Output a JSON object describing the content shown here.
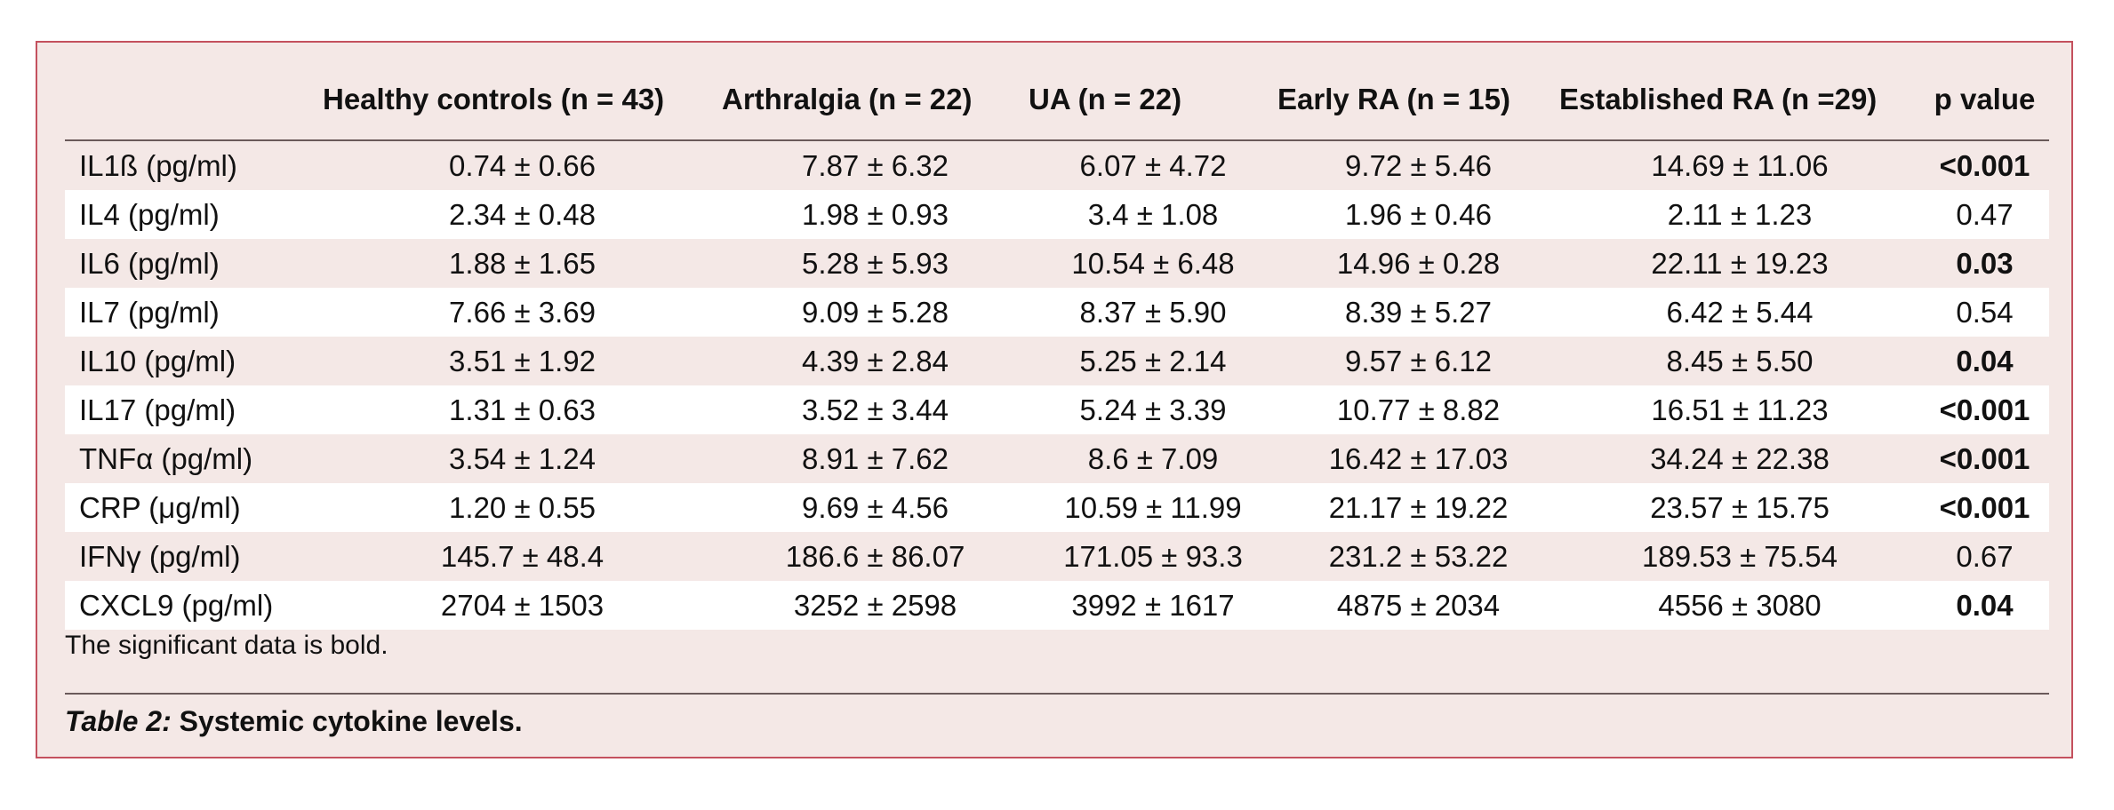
{
  "table": {
    "headers": {
      "label": "",
      "healthy": "Healthy controls (n = 43)",
      "arthralgia": "Arthralgia (n = 22)",
      "ua": "UA (n = 22)",
      "early_ra": "Early RA (n = 15)",
      "established_ra": "Established RA (n =29)",
      "p_value": "p value"
    },
    "rows": [
      {
        "label": "IL1ß (pg/ml)",
        "healthy": "0.74 ± 0.66",
        "arthralgia": "7.87 ± 6.32",
        "ua": "6.07 ± 4.72",
        "early_ra": "9.72 ± 5.46",
        "established_ra": "14.69 ± 11.06",
        "p": "<0.001",
        "significant": true
      },
      {
        "label": "IL4 (pg/ml)",
        "healthy": "2.34 ± 0.48",
        "arthralgia": "1.98 ± 0.93",
        "ua": "3.4 ± 1.08",
        "early_ra": "1.96 ± 0.46",
        "established_ra": "2.11 ± 1.23",
        "p": "0.47",
        "significant": false
      },
      {
        "label": "IL6 (pg/ml)",
        "healthy": "1.88 ± 1.65",
        "arthralgia": "5.28 ± 5.93",
        "ua": "10.54 ± 6.48",
        "early_ra": "14.96 ± 0.28",
        "established_ra": "22.11 ± 19.23",
        "p": "0.03",
        "significant": true
      },
      {
        "label": "IL7 (pg/ml)",
        "healthy": "7.66 ± 3.69",
        "arthralgia": "9.09 ± 5.28",
        "ua": "8.37 ± 5.90",
        "early_ra": "8.39 ± 5.27",
        "established_ra": "6.42 ± 5.44",
        "p": "0.54",
        "significant": false
      },
      {
        "label": "IL10 (pg/ml)",
        "healthy": "3.51 ± 1.92",
        "arthralgia": "4.39 ± 2.84",
        "ua": "5.25 ± 2.14",
        "early_ra": "9.57 ± 6.12",
        "established_ra": "8.45 ± 5.50",
        "p": "0.04",
        "significant": true
      },
      {
        "label": "IL17 (pg/ml)",
        "healthy": "1.31 ± 0.63",
        "arthralgia": "3.52 ± 3.44",
        "ua": "5.24 ± 3.39",
        "early_ra": "10.77 ± 8.82",
        "established_ra": "16.51 ± 11.23",
        "p": "<0.001",
        "significant": true
      },
      {
        "label": "TNFα (pg/ml)",
        "healthy": "3.54 ± 1.24",
        "arthralgia": "8.91 ± 7.62",
        "ua": "8.6 ± 7.09",
        "early_ra": "16.42 ± 17.03",
        "established_ra": "34.24 ± 22.38",
        "p": "<0.001",
        "significant": true
      },
      {
        "label": "CRP (μg/ml)",
        "healthy": "1.20 ± 0.55",
        "arthralgia": "9.69 ± 4.56",
        "ua": "10.59 ± 11.99",
        "early_ra": "21.17 ± 19.22",
        "established_ra": "23.57 ± 15.75",
        "p": "<0.001",
        "significant": true
      },
      {
        "label": "IFNγ (pg/ml)",
        "healthy": "145.7 ± 48.4",
        "arthralgia": "186.6 ± 86.07",
        "ua": "171.05 ± 93.3",
        "early_ra": "231.2 ± 53.22",
        "established_ra": "189.53 ± 75.54",
        "p": "0.67",
        "significant": false
      },
      {
        "label": "CXCL9 (pg/ml)",
        "healthy": "2704 ± 1503",
        "arthralgia": "3252 ± 2598",
        "ua": "3992 ± 1617",
        "early_ra": "4875 ± 2034",
        "established_ra": "4556 ± 3080",
        "p": "0.04",
        "significant": true
      }
    ]
  },
  "note": "The significant data is bold.",
  "caption": {
    "label": "Table 2:",
    "text": " Systemic cytokine levels."
  },
  "colors": {
    "panel_background": "#f4e8e6",
    "panel_border": "#c4515e",
    "alt_row": "#ffffff"
  }
}
